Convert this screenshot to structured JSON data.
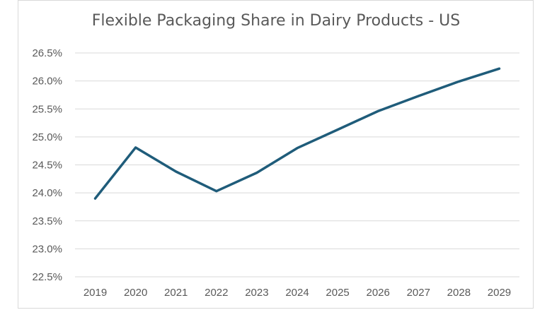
{
  "chart_data": {
    "type": "line",
    "title": "Flexible Packaging Share in Dairy Products - US",
    "xlabel": "",
    "ylabel": "",
    "x": [
      "2019",
      "2020",
      "2021",
      "2022",
      "2023",
      "2024",
      "2025",
      "2026",
      "2027",
      "2028",
      "2029"
    ],
    "series": [
      {
        "values": [
          23.9,
          24.81,
          24.38,
          24.03,
          24.36,
          24.8,
          25.13,
          25.46,
          25.73,
          25.99,
          26.22
        ],
        "color": "#1f5c7a"
      }
    ],
    "ylim": [
      22.5,
      26.5
    ],
    "yticks": [
      22.5,
      23.0,
      23.5,
      24.0,
      24.5,
      25.0,
      25.5,
      26.0,
      26.5
    ],
    "ytick_labels": [
      "22.5%",
      "23.0%",
      "23.5%",
      "24.0%",
      "24.5%",
      "25.0%",
      "25.5%",
      "26.0%",
      "26.5%"
    ],
    "grid": true,
    "legend": "none"
  }
}
